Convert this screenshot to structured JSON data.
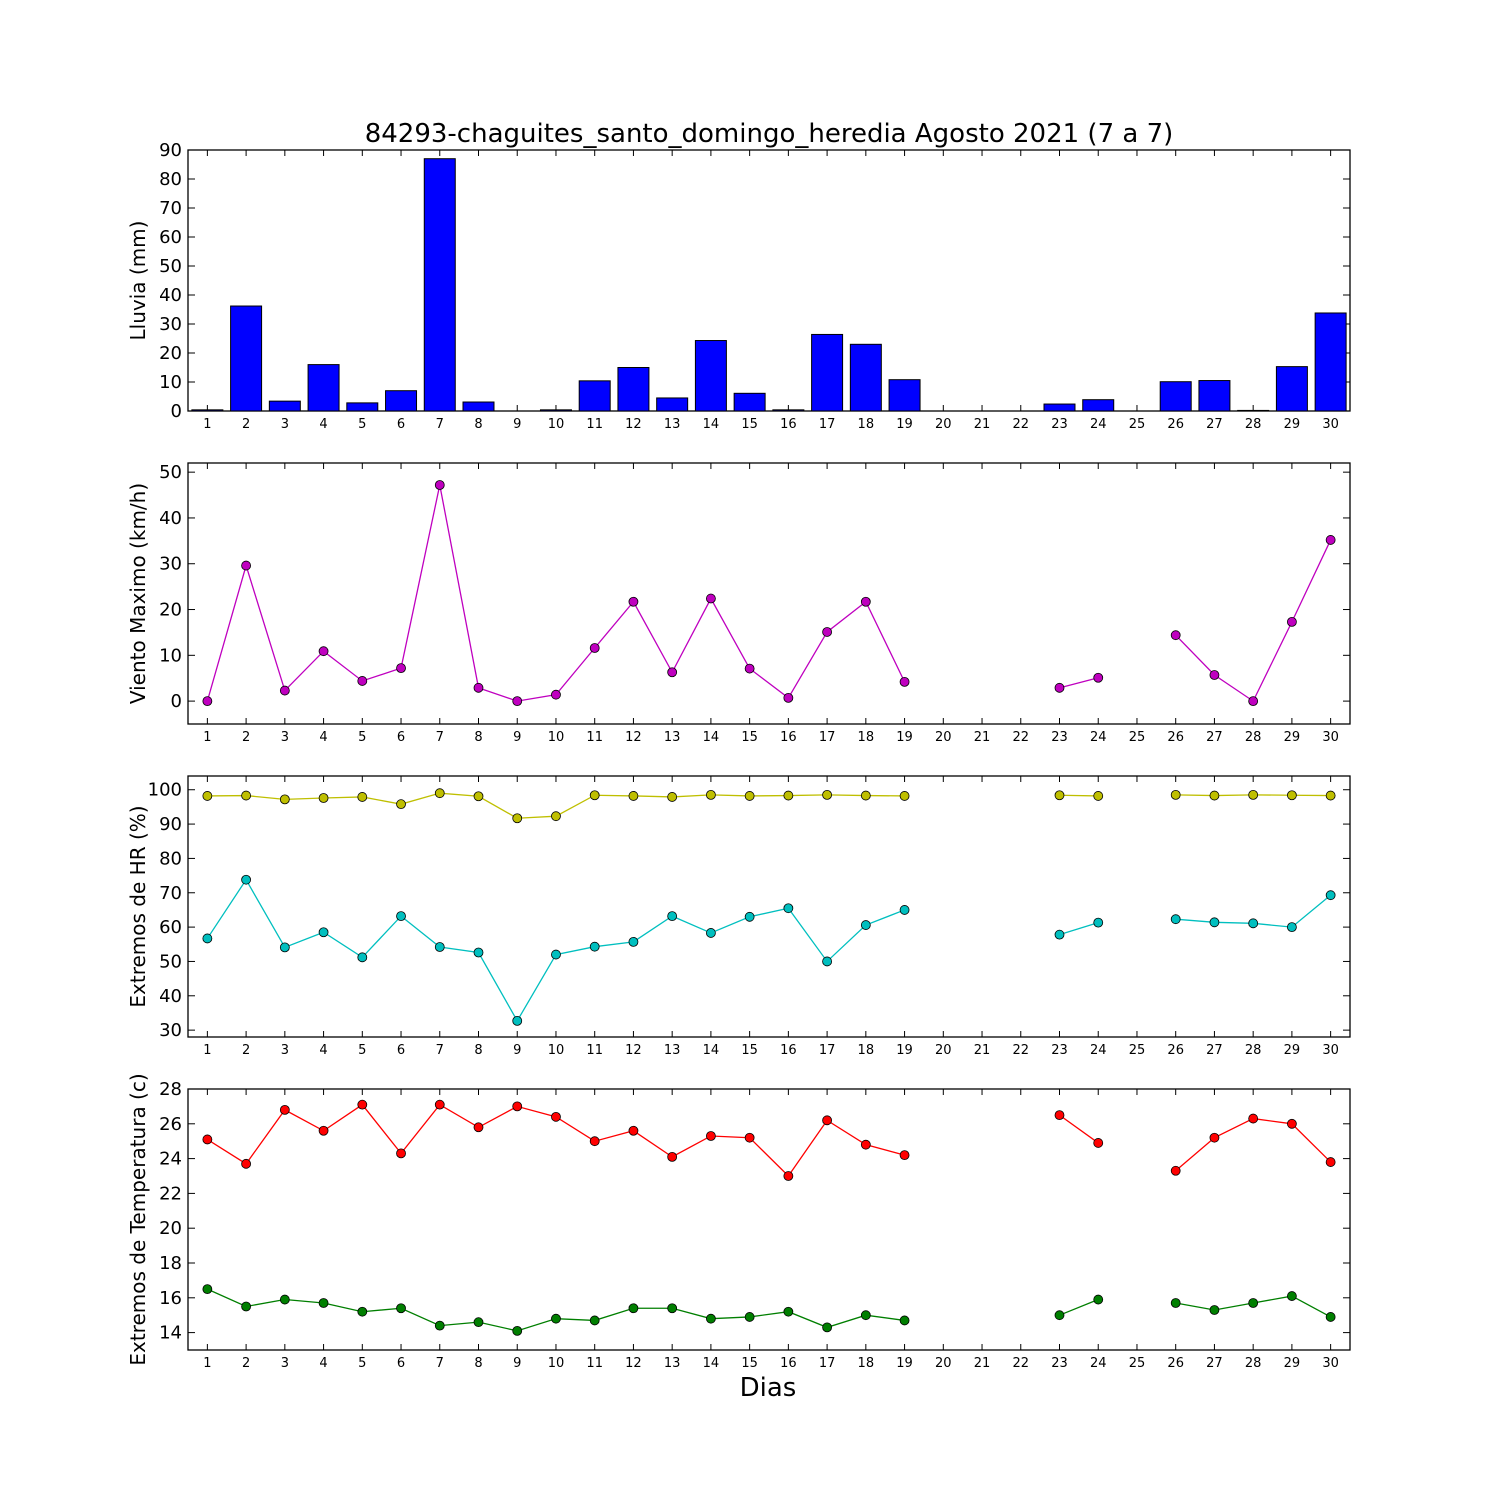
{
  "chart_data": {
    "title": "84293-chaguites_santo_domingo_heredia Agosto 2021  (7 a 7)",
    "xlabel": "Dias",
    "days": [
      1,
      2,
      3,
      4,
      5,
      6,
      7,
      8,
      9,
      10,
      11,
      12,
      13,
      14,
      15,
      16,
      17,
      18,
      19,
      20,
      21,
      22,
      23,
      24,
      25,
      26,
      27,
      28,
      29,
      30
    ],
    "panels": [
      {
        "type": "bar",
        "ylabel": "Lluvia (mm)",
        "ylim": [
          0,
          90
        ],
        "yticks": [
          0,
          10,
          20,
          30,
          40,
          50,
          60,
          70,
          80,
          90
        ],
        "series": [
          {
            "color": "#0000ff",
            "values": [
              0.4,
              36.2,
              3.4,
              16,
              2.8,
              7,
              87,
              3.1,
              0,
              0.4,
              10.4,
              15,
              4.5,
              24.3,
              6.1,
              0.4,
              26.4,
              23,
              10.8,
              null,
              null,
              null,
              2.4,
              3.9,
              null,
              10.1,
              10.5,
              0.2,
              15.3,
              33.8
            ]
          }
        ]
      },
      {
        "type": "line",
        "ylabel": "Viento Maximo (km/h)",
        "ylim": [
          -5,
          52
        ],
        "yticks": [
          0,
          10,
          20,
          30,
          40,
          50
        ],
        "series": [
          {
            "color": "#bf00bf",
            "values": [
              0,
              29.6,
              2.3,
              10.9,
              4.4,
              7.2,
              47.2,
              2.9,
              0,
              1.4,
              11.6,
              21.7,
              6.3,
              22.4,
              7.1,
              0.7,
              15.1,
              21.7,
              4.2,
              null,
              null,
              null,
              2.9,
              5.1,
              null,
              14.4,
              5.7,
              0,
              17.3,
              35.2
            ]
          }
        ]
      },
      {
        "type": "line",
        "ylabel": "Extremos de HR (%)",
        "ylim": [
          28,
          104
        ],
        "yticks": [
          30,
          40,
          50,
          60,
          70,
          80,
          90,
          100
        ],
        "series": [
          {
            "color": "#bfbf00",
            "values": [
              98.2,
              98.3,
              97.2,
              97.6,
              97.9,
              95.8,
              99,
              98.1,
              91.7,
              92.3,
              98.4,
              98.2,
              97.9,
              98.5,
              98.2,
              98.3,
              98.5,
              98.3,
              98.2,
              null,
              null,
              null,
              98.4,
              98.2,
              null,
              98.5,
              98.3,
              98.5,
              98.4,
              98.3
            ]
          },
          {
            "color": "#00bfbf",
            "values": [
              56.7,
              73.8,
              54.1,
              58.5,
              51.2,
              63.2,
              54.2,
              52.6,
              32.7,
              52,
              54.3,
              55.7,
              63.2,
              58.3,
              63,
              65.5,
              50,
              60.6,
              65,
              null,
              null,
              null,
              57.8,
              61.3,
              null,
              62.3,
              61.4,
              61.1,
              60,
              69.3
            ]
          }
        ]
      },
      {
        "type": "line",
        "ylabel": "Extremos de Temperatura (c)",
        "ylim": [
          13,
          28
        ],
        "yticks": [
          14,
          16,
          18,
          20,
          22,
          24,
          26,
          28
        ],
        "series": [
          {
            "color": "#ff0000",
            "values": [
              25.1,
              23.7,
              26.8,
              25.6,
              27.1,
              24.3,
              27.1,
              25.8,
              27,
              26.4,
              25,
              25.6,
              24.1,
              25.3,
              25.2,
              23,
              26.2,
              24.8,
              24.2,
              null,
              null,
              null,
              26.5,
              24.9,
              null,
              23.3,
              25.2,
              26.3,
              26,
              23.8
            ]
          },
          {
            "color": "#007f00",
            "values": [
              16.5,
              15.5,
              15.9,
              15.7,
              15.2,
              15.4,
              14.4,
              14.6,
              14.1,
              14.8,
              14.7,
              15.4,
              15.4,
              14.8,
              14.9,
              15.2,
              14.3,
              15,
              14.7,
              null,
              null,
              null,
              15,
              15.9,
              null,
              15.7,
              15.3,
              15.7,
              16.1,
              14.9
            ]
          }
        ]
      }
    ]
  }
}
